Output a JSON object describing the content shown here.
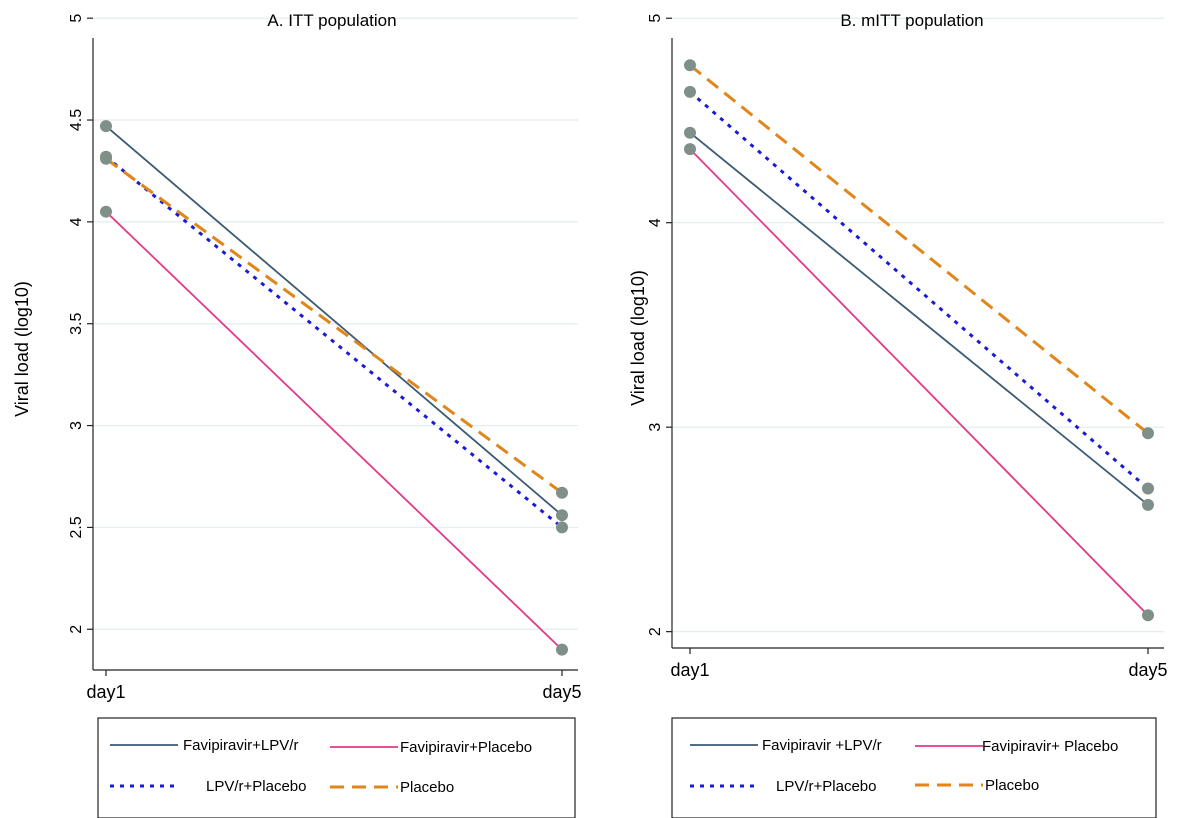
{
  "chart_data": [
    {
      "type": "line",
      "title": "A. ITT population",
      "ylabel": "Viral load (log10)",
      "xlabel": "",
      "categories": [
        "day1",
        "day5"
      ],
      "ylim": [
        1.8,
        5.05
      ],
      "yticks": [
        2,
        2.5,
        3,
        3.5,
        4,
        4.5,
        5
      ],
      "ytick_labels": [
        "2",
        "2.5",
        "3",
        "3.5",
        "4",
        "4.5",
        "5"
      ],
      "grid": true,
      "legend_position": "bottom",
      "series": [
        {
          "name": "Favipiravir+LPV/r",
          "values": [
            4.47,
            2.56
          ],
          "color": "#3b5a74",
          "dash": "solid"
        },
        {
          "name": "Favipiravir+Placebo",
          "values": [
            4.05,
            1.9
          ],
          "color": "#e33a89",
          "dash": "solid"
        },
        {
          "name": "LPV/r+Placebo",
          "values": [
            4.32,
            2.5
          ],
          "color": "#1a1adb",
          "dash": "dot"
        },
        {
          "name": "Placebo",
          "values": [
            4.31,
            2.67
          ],
          "color": "#e0861b",
          "dash": "dash"
        }
      ]
    },
    {
      "type": "line",
      "title": "B. mITT population",
      "ylabel": "Viral load (log10)",
      "xlabel": "",
      "categories": [
        "day1",
        "day5"
      ],
      "ylim": [
        1.92,
        5.05
      ],
      "yticks": [
        2,
        3,
        4,
        5
      ],
      "ytick_labels": [
        "2",
        "3",
        "4",
        "5"
      ],
      "grid": true,
      "legend_position": "bottom",
      "series": [
        {
          "name": "Favipiravir +LPV/r",
          "values": [
            4.44,
            2.62
          ],
          "color": "#3b5a74",
          "dash": "solid"
        },
        {
          "name": "Favipiravir+ Placebo",
          "values": [
            4.36,
            2.08
          ],
          "color": "#e33a89",
          "dash": "solid"
        },
        {
          "name": "LPV/r+Placebo",
          "values": [
            4.64,
            2.7
          ],
          "color": "#1a1adb",
          "dash": "dot"
        },
        {
          "name": "Placebo",
          "values": [
            4.77,
            2.97
          ],
          "color": "#e0861b",
          "dash": "dash"
        }
      ]
    }
  ],
  "marker_color": "#7f9089",
  "grid_color": "#e3ecee"
}
